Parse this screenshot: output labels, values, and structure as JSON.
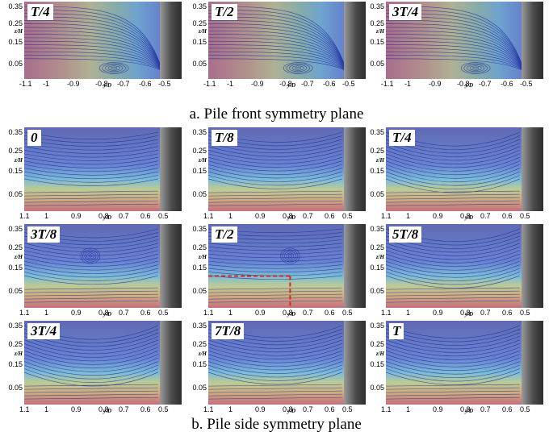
{
  "captions": {
    "a": "a. Pile front symmetry plane",
    "b": "b. Pile side symmetry plane"
  },
  "axis": {
    "y_label": "z/H",
    "x_label": "y/D",
    "front_y_ticks": [
      "0.35",
      "0.25",
      "0.15",
      "0.05"
    ],
    "front_x_ticks": [
      "-1.1",
      "-1",
      "-0.9",
      "-0.8",
      "-0.7",
      "-0.6",
      "-0.5"
    ],
    "side_y_ticks": [
      "0.35",
      "0.25",
      "0.15",
      "0.05"
    ],
    "side_x_ticks": [
      "1.1",
      "1",
      "0.9",
      "0.8",
      "0.7",
      "0.6",
      "0.5"
    ]
  },
  "front_panels": [
    {
      "label": "T/4"
    },
    {
      "label": "T/2"
    },
    {
      "label": "3T/4"
    }
  ],
  "side_panels": [
    {
      "label": "0"
    },
    {
      "label": "T/8"
    },
    {
      "label": "T/4"
    },
    {
      "label": "3T/8"
    },
    {
      "label": "T/2"
    },
    {
      "label": "5T/8"
    },
    {
      "label": "3T/4"
    },
    {
      "label": "7T/8"
    },
    {
      "label": "T"
    }
  ],
  "colors": {
    "low_velocity": "#0a1a8c",
    "high_velocity": "#d7261e",
    "pile": "#4a4a4a",
    "marker": "#d7261e"
  }
}
